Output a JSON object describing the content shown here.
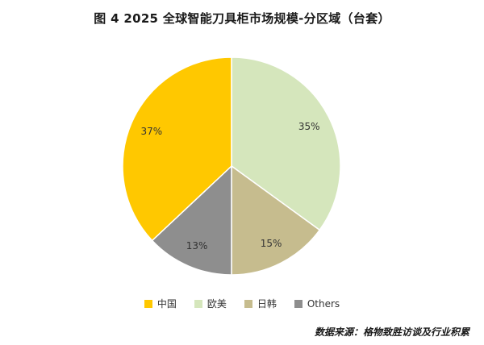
{
  "figure": {
    "label": "图 4",
    "title": "2025 全球智能刀具柜市场规模-分区域（台套）"
  },
  "chart_data": {
    "type": "pie",
    "categories": [
      "中国",
      "欧美",
      "日韩",
      "Others"
    ],
    "values": [
      37,
      35,
      15,
      13
    ],
    "value_labels": [
      "37%",
      "35%",
      "15%",
      "13%"
    ],
    "colors": [
      "#FFC800",
      "#D5E6BC",
      "#C6BC8E",
      "#8E8E8E"
    ],
    "start_angle_deg": 0,
    "direction": "clockwise-from-top, order: 欧美, 日韩, Others, 中国",
    "legend_position": "bottom"
  },
  "source": "数据来源：格物致胜访谈及行业积累"
}
